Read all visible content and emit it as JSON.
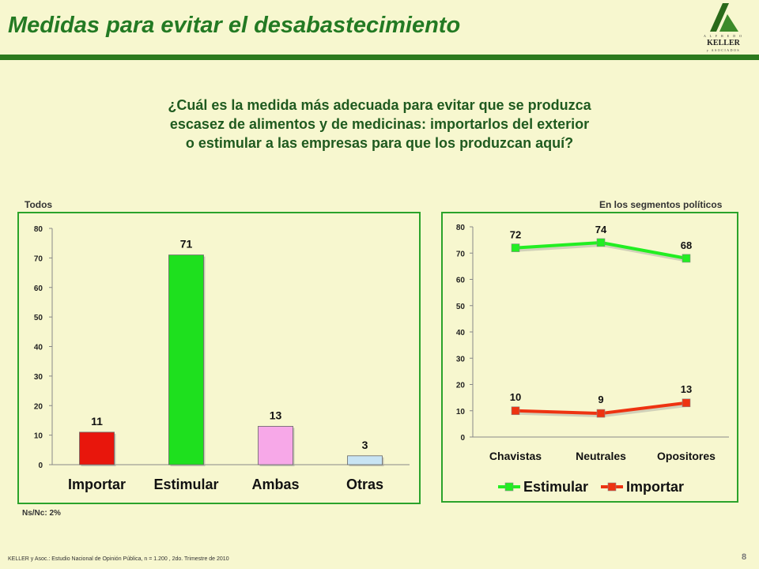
{
  "title": "Medidas para evitar el desabastecimiento",
  "logo": {
    "top": "A L F R E D O",
    "name": "KELLER",
    "sub": "y ASOCIADOS"
  },
  "question_lines": [
    "¿Cuál es la medida más adecuada para evitar que se produzca",
    "escasez de alimentos y de medicinas: importarlos del exterior",
    "o estimular a las empresas para que los produzcan aquí?"
  ],
  "left_label": "Todos",
  "right_label": "En los segmentos políticos",
  "footnote": "Ns/Nc: 2%",
  "source": "KELLER y Asoc.: Estudio Nacional de Opinión Pública, n = 1.200 , 2do. Trimestre de 2010",
  "page_number": "8",
  "colors": {
    "title": "#237a23",
    "importar": "#e8160c",
    "estimular": "#1ee01e",
    "ambas": "#f7a8e8",
    "otras": "#c8e4f4",
    "line_estimular": "#22ee22",
    "line_importar": "#ee3311",
    "panel_border": "#2ba32b"
  },
  "chart_data": [
    {
      "type": "bar",
      "categories": [
        "Importar",
        "Estimular",
        "Ambas",
        "Otras"
      ],
      "values": [
        11,
        71,
        13,
        3
      ],
      "ylim": [
        0,
        80
      ],
      "yticks": [
        0,
        10,
        20,
        30,
        40,
        50,
        60,
        70,
        80
      ],
      "data_labels": true
    },
    {
      "type": "line",
      "categories": [
        "Chavistas",
        "Neutrales",
        "Opositores"
      ],
      "series": [
        {
          "name": "Estimular",
          "values": [
            72,
            74,
            68
          ]
        },
        {
          "name": "Importar",
          "values": [
            10,
            9,
            13
          ]
        }
      ],
      "ylim": [
        0,
        80
      ],
      "yticks": [
        0,
        10,
        20,
        30,
        40,
        50,
        60,
        70,
        80
      ],
      "legend": "bottom",
      "data_labels": true
    }
  ]
}
